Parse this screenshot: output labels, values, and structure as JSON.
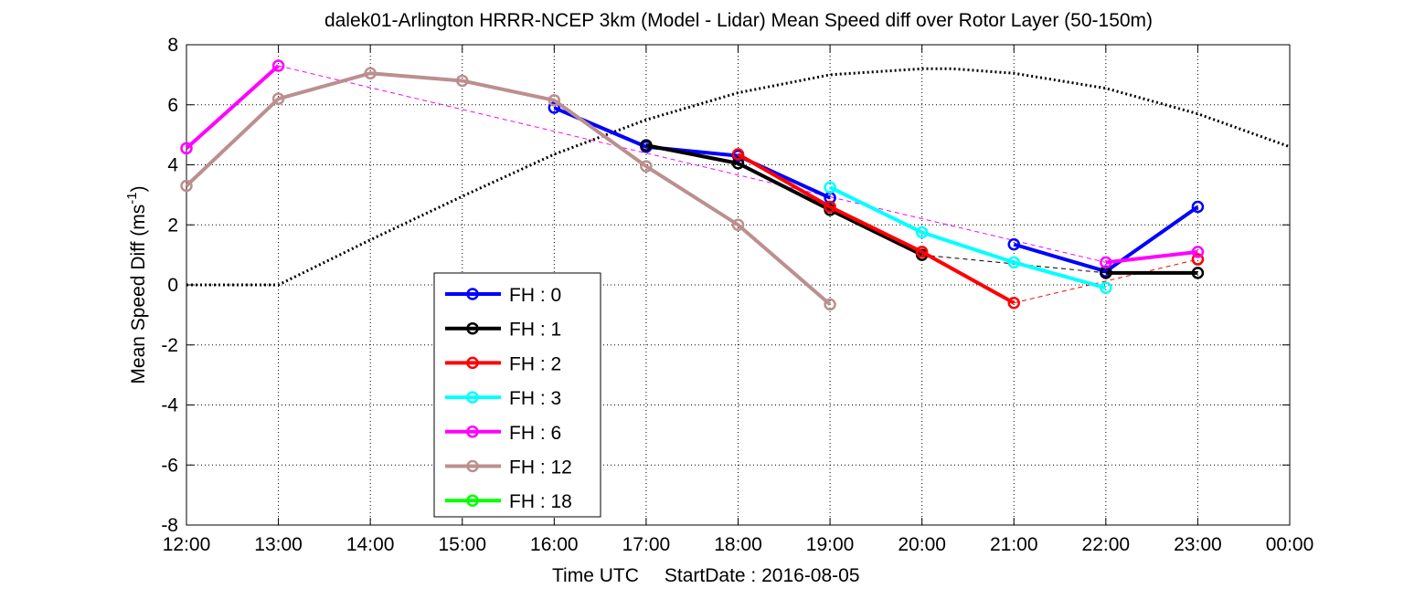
{
  "chart_data": {
    "type": "line",
    "title": "dalek01-Arlington HRRR-NCEP 3km (Model - Lidar) Mean Speed diff over Rotor Layer (50-150m)",
    "xlabel": "Time UTC",
    "start_date_label": "StartDate : 2016-08-05",
    "ylabel_main": "Mean Speed Diff (ms",
    "ylabel_sup": "-1",
    "ylabel_close": ")",
    "xlim": [
      12,
      24
    ],
    "ylim": [
      -8,
      8
    ],
    "x_ticks": [
      12,
      13,
      14,
      15,
      16,
      17,
      18,
      19,
      20,
      21,
      22,
      23,
      24
    ],
    "x_tick_labels": [
      "12:00",
      "13:00",
      "14:00",
      "15:00",
      "16:00",
      "17:00",
      "18:00",
      "19:00",
      "20:00",
      "21:00",
      "22:00",
      "23:00",
      "00:00"
    ],
    "y_ticks": [
      -8,
      -6,
      -4,
      -2,
      0,
      2,
      4,
      6,
      8
    ],
    "y_tick_labels": [
      "-8",
      "-6",
      "-4",
      "-2",
      "0",
      "2",
      "4",
      "6",
      "8"
    ],
    "grid": true,
    "legend_position": "lower-left",
    "series": [
      {
        "name": "FH : 0",
        "color": "#0000ff",
        "x": [
          16,
          17,
          18,
          19,
          20,
          21,
          22,
          23
        ],
        "values": [
          5.9,
          4.6,
          4.3,
          2.9,
          null,
          1.35,
          0.45,
          2.6
        ]
      },
      {
        "name": "FH : 1",
        "color": "#000000",
        "x": [
          17,
          18,
          19,
          20,
          21,
          22,
          23
        ],
        "values": [
          4.65,
          4.05,
          2.5,
          1.0,
          null,
          0.4,
          0.4
        ]
      },
      {
        "name": "FH : 2",
        "color": "#ff0000",
        "x": [
          18,
          19,
          20,
          21,
          22,
          23
        ],
        "values": [
          4.35,
          2.6,
          1.1,
          -0.6,
          null,
          0.85
        ]
      },
      {
        "name": "FH : 3",
        "color": "#00ffff",
        "x": [
          19,
          20,
          21,
          22
        ],
        "values": [
          3.25,
          1.75,
          0.75,
          -0.1
        ]
      },
      {
        "name": "FH : 6",
        "color": "#ff00ff",
        "x": [
          12,
          13,
          22,
          23
        ],
        "values": [
          4.55,
          7.3,
          0.75,
          1.1
        ]
      },
      {
        "name": "FH : 12",
        "color": "#bc8f8f",
        "x": [
          12,
          13,
          14,
          15,
          16,
          17,
          18,
          19
        ],
        "values": [
          3.3,
          6.2,
          7.05,
          6.8,
          6.15,
          3.95,
          2.0,
          -0.65
        ]
      },
      {
        "name": "FH : 18",
        "color": "#00ff00",
        "x": [],
        "values": []
      }
    ],
    "dashed_lines": [
      {
        "color": "#ff00ff",
        "x": [
          13,
          22
        ],
        "values": [
          7.3,
          0.75
        ]
      },
      {
        "color": "#000000",
        "x": [
          20,
          22
        ],
        "values": [
          1.0,
          0.4
        ]
      },
      {
        "color": "#ff0000",
        "x": [
          21,
          23
        ],
        "values": [
          -0.6,
          0.85
        ]
      }
    ],
    "dotted_curve": {
      "color": "#000000",
      "x": [
        12,
        13,
        14,
        15,
        16,
        17,
        18,
        19,
        20,
        20.33,
        21,
        22,
        23,
        24
      ],
      "values": [
        0,
        0,
        1.5,
        2.95,
        4.35,
        5.5,
        6.4,
        7.0,
        7.2,
        7.2,
        7.05,
        6.55,
        5.7,
        4.6
      ]
    }
  }
}
